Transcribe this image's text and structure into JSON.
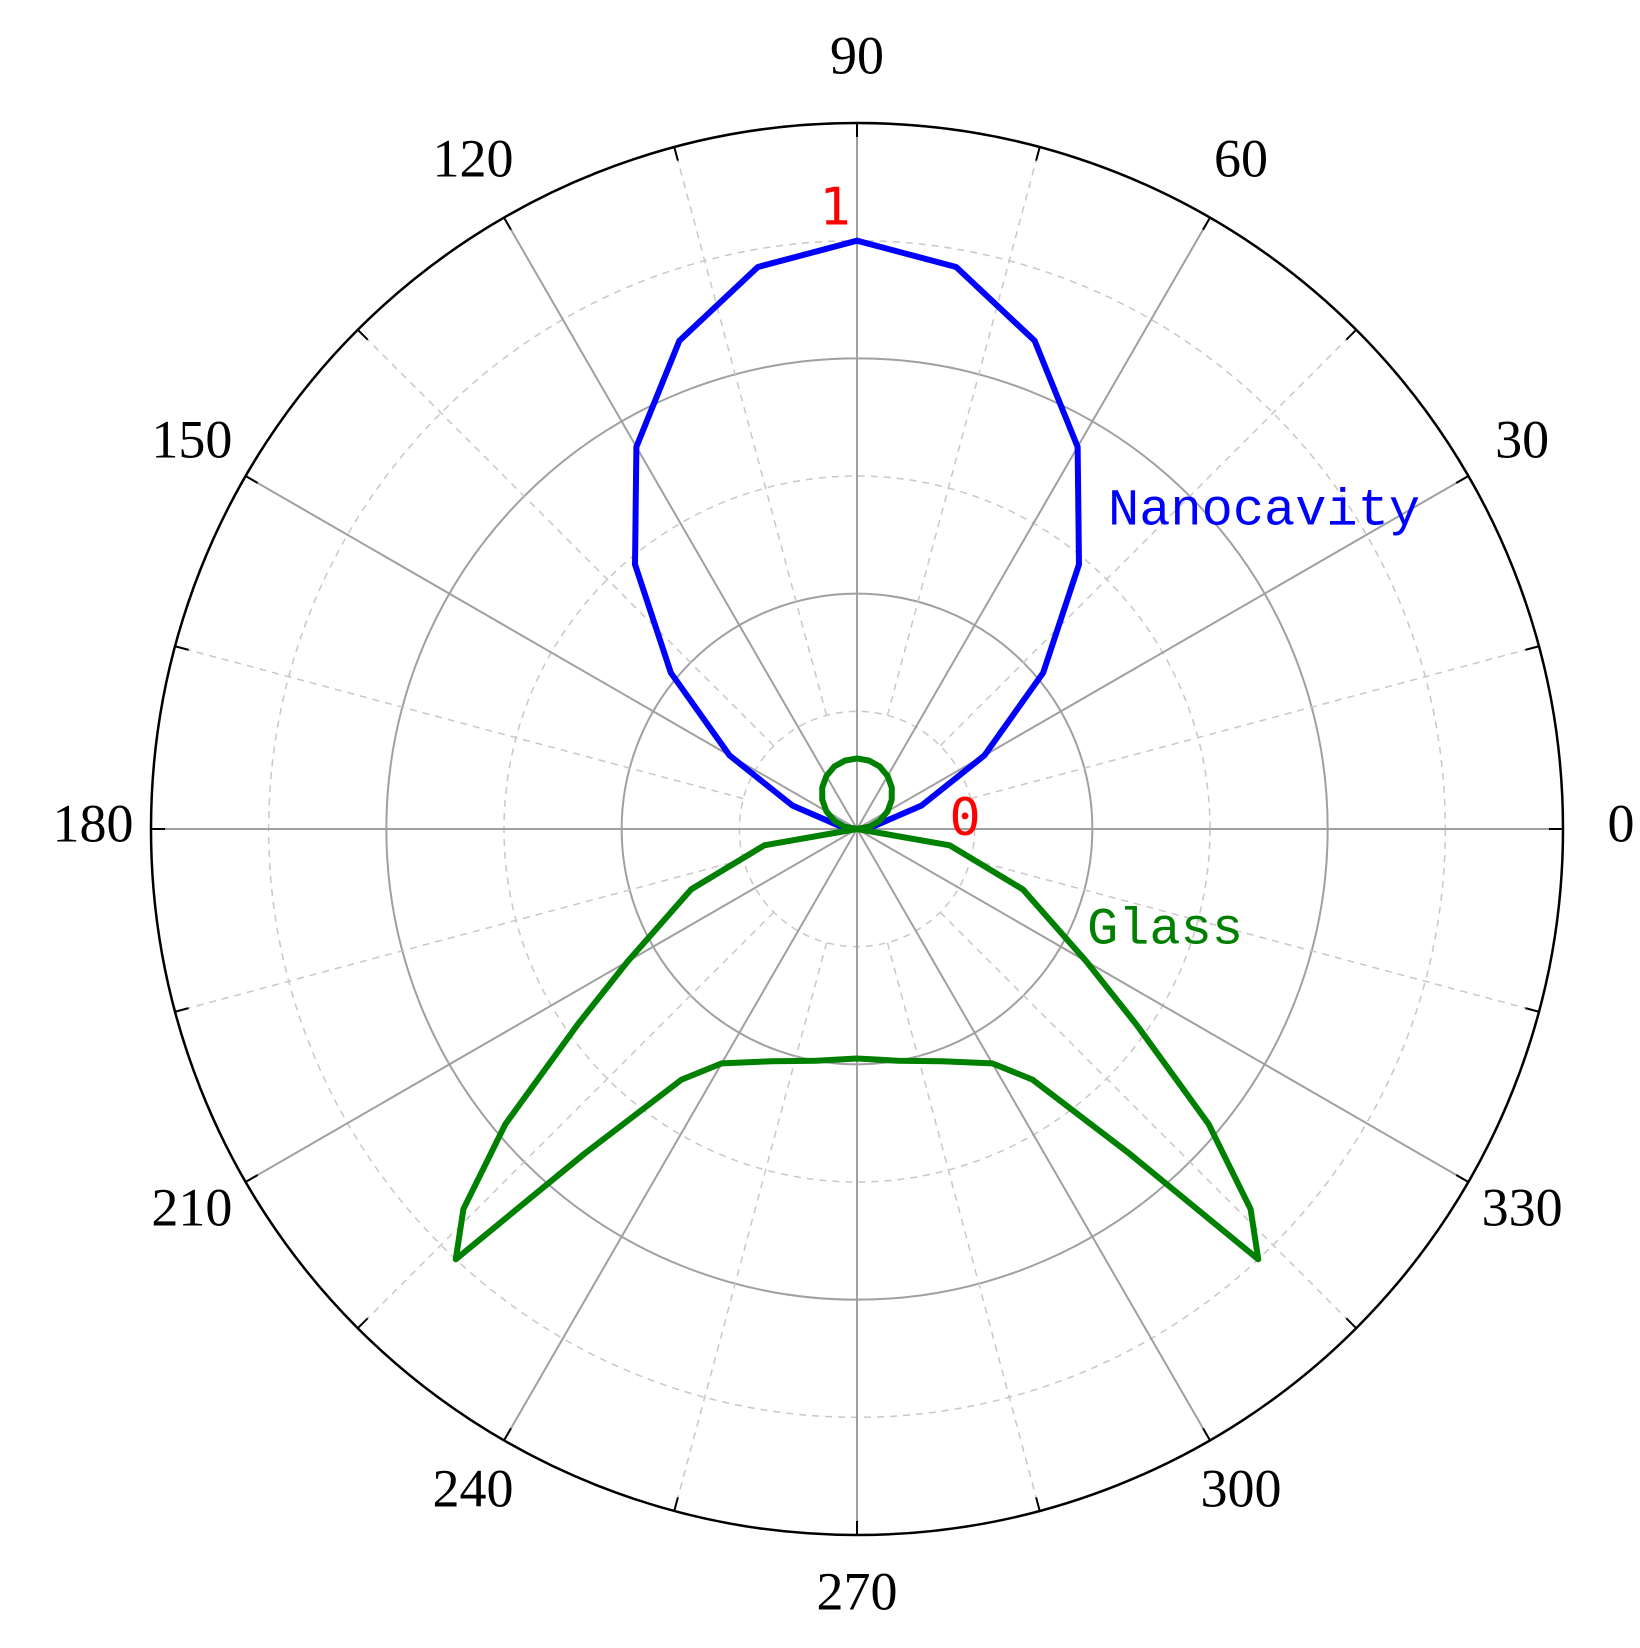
{
  "chart_data": {
    "type": "polar",
    "rlim": [
      0,
      1.2
    ],
    "rticks": [
      0,
      1
    ],
    "rtick_color": "#ff0000",
    "thetaticks": [
      0,
      30,
      60,
      90,
      120,
      150,
      180,
      210,
      240,
      270,
      300,
      330
    ],
    "grid": true,
    "series": [
      {
        "name": "Nanocavity",
        "color": "#0000ff",
        "theta": [
          0,
          10,
          20,
          30,
          40,
          50,
          60,
          70,
          80,
          90,
          100,
          110,
          120,
          130,
          140,
          150,
          160,
          170,
          180
        ],
        "values": [
          0,
          0.03,
          0.117,
          0.25,
          0.413,
          0.587,
          0.75,
          0.883,
          0.97,
          1.0,
          0.97,
          0.883,
          0.75,
          0.587,
          0.413,
          0.25,
          0.117,
          0.03,
          0
        ]
      },
      {
        "name": "Glass",
        "color": "#008000",
        "theta": [
          0,
          10,
          20,
          30,
          40,
          50,
          60,
          70,
          80,
          90,
          100,
          110,
          120,
          130,
          140,
          150,
          160,
          170,
          180,
          190,
          200,
          210,
          215,
          220,
          224,
          227,
          230,
          235,
          240,
          250,
          260,
          270,
          280,
          290,
          300,
          305,
          310,
          313,
          316,
          320,
          325,
          330,
          340,
          350,
          360
        ],
        "values": [
          0,
          0.021,
          0.041,
          0.06,
          0.077,
          0.092,
          0.104,
          0.113,
          0.118,
          0.12,
          0.118,
          0.113,
          0.104,
          0.092,
          0.077,
          0.06,
          0.041,
          0.021,
          0,
          0.16,
          0.3,
          0.45,
          0.58,
          0.78,
          0.93,
          1.0,
          0.72,
          0.52,
          0.46,
          0.42,
          0.4,
          0.39,
          0.4,
          0.42,
          0.46,
          0.52,
          0.72,
          1.0,
          0.93,
          0.78,
          0.58,
          0.45,
          0.3,
          0.16,
          0
        ]
      }
    ]
  }
}
